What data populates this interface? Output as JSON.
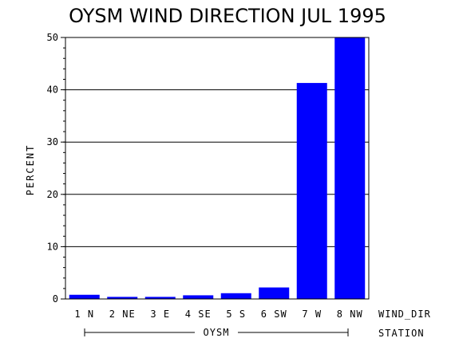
{
  "chart_data": {
    "type": "bar",
    "title": "OYSM WIND DIRECTION JUL 1995",
    "ylabel": "PERCENT",
    "xlabel": "WIND_DIR",
    "group_axis_label": "STATION",
    "group_label": "OYSM",
    "categories": [
      "1 N",
      "2 NE",
      "3 E",
      "4 SE",
      "5 S",
      "6 SW",
      "7 W",
      "8 NW"
    ],
    "values": [
      0.8,
      0.4,
      0.4,
      0.7,
      1.1,
      2.2,
      41.3,
      50.0
    ],
    "ylim": [
      0,
      50
    ],
    "yticks": [
      0,
      10,
      20,
      30,
      40,
      50
    ],
    "grid": true,
    "bar_color": "#0000ff"
  }
}
